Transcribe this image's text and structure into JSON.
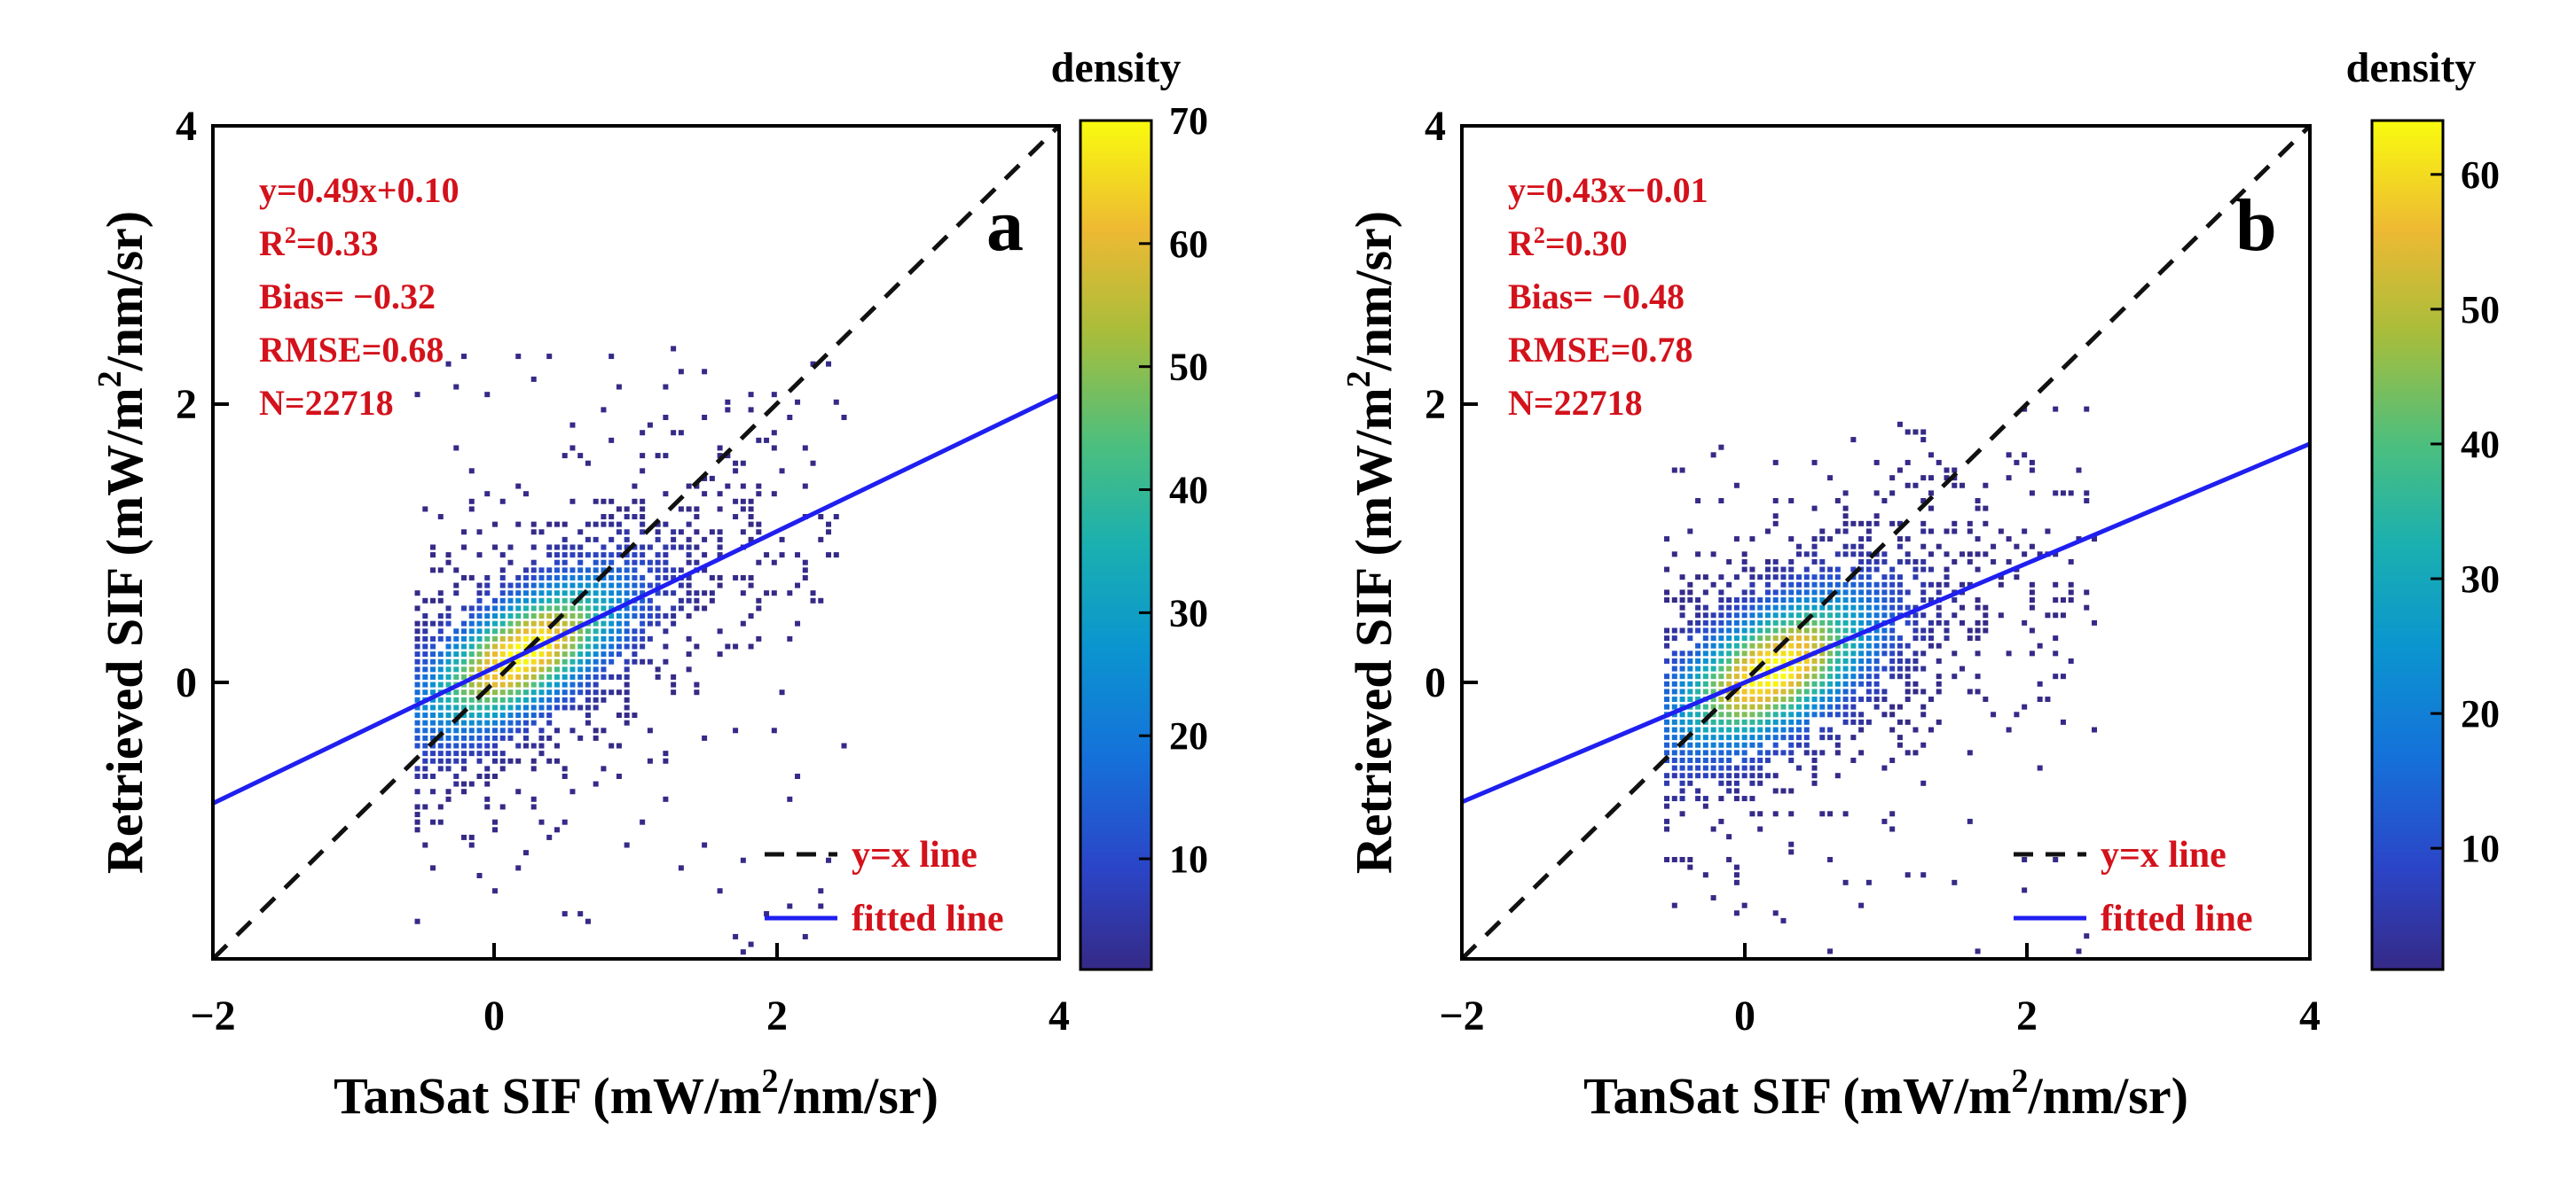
{
  "figure": {
    "colorbar_title": "density",
    "xlabel_main": "TanSat SIF (mW/m",
    "xlabel_sup": "2",
    "xlabel_tail": "/nm/sr)",
    "ylabel_main": "Retrieved SIF (mW/m",
    "ylabel_sup": "2",
    "ylabel_tail": "/nm/sr)",
    "legend": {
      "identity_label": "y=x line",
      "fit_label": "fitted line"
    },
    "colors": {
      "annotation": "#d3121b",
      "fit_line": "#1f1ff0",
      "identity_line": "#111111",
      "axis": "#000000"
    },
    "colormap": "parula"
  },
  "chart_data": [
    {
      "type": "scatter",
      "panel_label": "a",
      "title": "",
      "xlabel": "TanSat SIF (mW/m2/nm/sr)",
      "ylabel": "Retrieved SIF (mW/m2/nm/sr)",
      "xlim": [
        -2,
        4
      ],
      "ylim": [
        -2,
        4
      ],
      "xticks": [
        "−2",
        "0",
        "2",
        "4"
      ],
      "yticks": [
        "0",
        "2",
        "4"
      ],
      "fit": {
        "slope": 0.49,
        "intercept": 0.1
      },
      "stats": {
        "equation": "y=0.49x+0.10",
        "r2_prefix": "R",
        "r2_sup": "2",
        "r2_value": "=0.33",
        "bias": "Bias= −0.32",
        "rmse": "RMSE=0.68",
        "n": "N=22718"
      },
      "colorbar": {
        "label": "density",
        "range": [
          1,
          70
        ],
        "ticks": [
          "10",
          "20",
          "30",
          "40",
          "50",
          "60",
          "70"
        ]
      },
      "density_model": {
        "center": [
          0.2,
          0.15
        ],
        "spread_x": 0.9,
        "spread_y": 0.55,
        "peak": 70,
        "extent_x": [
          -0.55,
          2.5
        ],
        "extent_y": [
          -1.95,
          2.4
        ]
      }
    },
    {
      "type": "scatter",
      "panel_label": "b",
      "title": "",
      "xlabel": "TanSat SIF (mW/m2/nm/sr)",
      "ylabel": "Retrieved SIF (mW/m2/nm/sr)",
      "xlim": [
        -2,
        4
      ],
      "ylim": [
        -2,
        4
      ],
      "xticks": [
        "−2",
        "0",
        "2",
        "4"
      ],
      "yticks": [
        "0",
        "2",
        "4"
      ],
      "fit": {
        "slope": 0.43,
        "intercept": -0.01
      },
      "stats": {
        "equation": "y=0.43x−0.01",
        "r2_prefix": "R",
        "r2_sup": "2",
        "r2_value": "=0.30",
        "bias": "Bias= −0.48",
        "rmse": "RMSE=0.78",
        "n": "N=22718"
      },
      "colorbar": {
        "label": "density",
        "range": [
          1,
          64
        ],
        "ticks": [
          "10",
          "20",
          "30",
          "40",
          "50",
          "60"
        ]
      },
      "density_model": {
        "center": [
          0.2,
          0.05
        ],
        "spread_x": 0.9,
        "spread_y": 0.6,
        "peak": 64,
        "extent_x": [
          -0.55,
          2.5
        ],
        "extent_y": [
          -2.0,
          2.0
        ]
      }
    }
  ]
}
